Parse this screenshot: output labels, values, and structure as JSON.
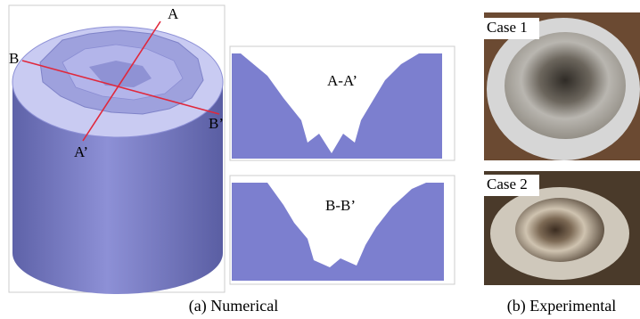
{
  "numerical": {
    "section_labels": [
      "A",
      "A’",
      "B",
      "B’"
    ],
    "cut_titles": [
      "A-A’",
      "B-B’"
    ],
    "caption": "(a) Numerical"
  },
  "experimental": {
    "cases": [
      "Case 1",
      "Case 2"
    ],
    "caption": "(b) Experimental"
  }
}
